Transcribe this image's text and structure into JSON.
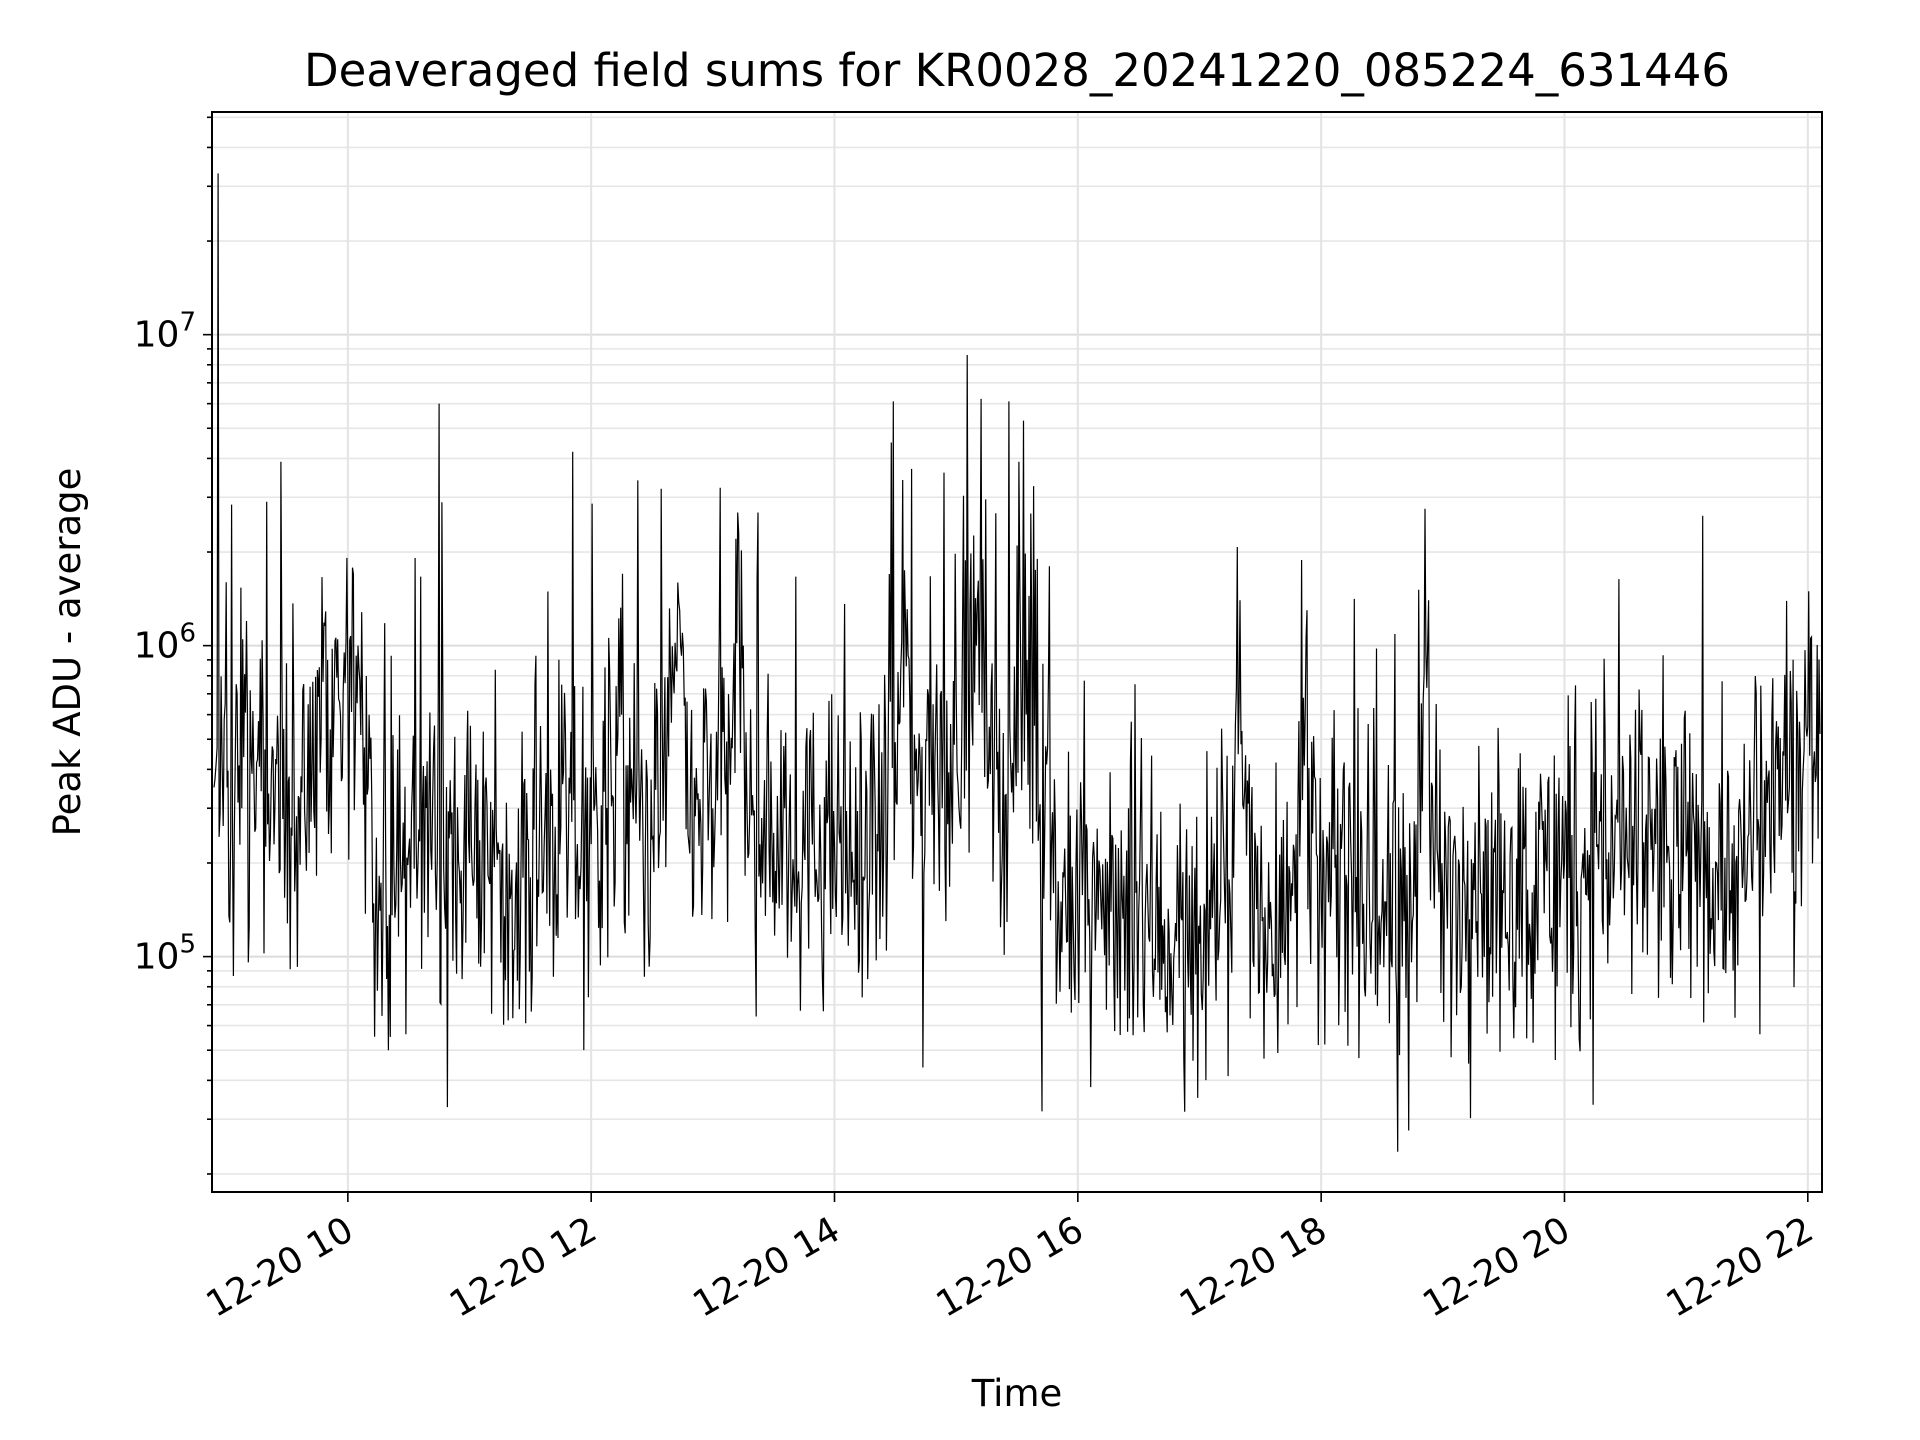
{
  "chart_data": {
    "type": "line",
    "title": "Deaveraged field sums for KR0028_20241220_085224_631446",
    "xlabel": "Time",
    "ylabel": "Peak ADU - average",
    "yscale": "log",
    "ylim": [
      17500,
      52000000
    ],
    "xlim": [
      "12-20 08:53",
      "12-20 22:07"
    ],
    "grid": true,
    "x_ticks": [
      "12-20 10",
      "12-20 12",
      "12-20 14",
      "12-20 16",
      "12-20 18",
      "12-20 20",
      "12-20 22"
    ],
    "y_ticks": [
      {
        "base": "10",
        "exp": "5",
        "value": 100000
      },
      {
        "base": "10",
        "exp": "6",
        "value": 1000000
      },
      {
        "base": "10",
        "exp": "7",
        "value": 10000000
      }
    ],
    "series": [
      {
        "color": "#000000",
        "points": [
          [
            "12-20 08:54",
            350000
          ],
          [
            "12-20 08:56",
            33000000
          ],
          [
            "12-20 08:58",
            420000
          ],
          [
            "12-20 09:00",
            1600000
          ],
          [
            "12-20 09:04",
            250000
          ],
          [
            "12-20 09:10",
            1200000
          ],
          [
            "12-20 09:15",
            420000
          ],
          [
            "12-20 09:20",
            2900000
          ],
          [
            "12-20 09:24",
            300000
          ],
          [
            "12-20 09:27",
            3900000
          ],
          [
            "12-20 09:32",
            260000
          ],
          [
            "12-20 09:40",
            330000
          ],
          [
            "12-20 09:50",
            900000
          ],
          [
            "12-20 10:00",
            750000
          ],
          [
            "12-20 10:05",
            1000000
          ],
          [
            "12-20 10:10",
            350000
          ],
          [
            "12-20 10:15",
            130000
          ],
          [
            "12-20 10:30",
            220000
          ],
          [
            "12-20 10:45",
            6000000
          ],
          [
            "12-20 10:50",
            240000
          ],
          [
            "12-20 11:00",
            200000
          ],
          [
            "12-20 11:15",
            220000
          ],
          [
            "12-20 11:30",
            180000
          ],
          [
            "12-20 11:45",
            260000
          ],
          [
            "12-20 12:00",
            230000
          ],
          [
            "12-20 12:15",
            600000
          ],
          [
            "12-20 12:23",
            3400000
          ],
          [
            "12-20 12:30",
            240000
          ],
          [
            "12-20 12:45",
            1100000
          ],
          [
            "12-20 13:00",
            300000
          ],
          [
            "12-20 13:15",
            1000000
          ],
          [
            "12-20 13:30",
            250000
          ],
          [
            "12-20 13:45",
            220000
          ],
          [
            "12-20 14:00",
            230000
          ],
          [
            "12-20 14:15",
            180000
          ],
          [
            "12-20 14:27",
            1700000
          ],
          [
            "12-20 14:28",
            4500000
          ],
          [
            "12-20 14:29",
            6100000
          ],
          [
            "12-20 14:35",
            1200000
          ],
          [
            "12-20 14:38",
            3700000
          ],
          [
            "12-20 14:45",
            500000
          ],
          [
            "12-20 14:54",
            3600000
          ],
          [
            "12-20 15:00",
            700000
          ],
          [
            "12-20 15:10",
            1000000
          ],
          [
            "12-20 15:20",
            400000
          ],
          [
            "12-20 15:26",
            6100000
          ],
          [
            "12-20 15:35",
            900000
          ],
          [
            "12-20 15:40",
            1900000
          ],
          [
            "12-20 15:46",
            1800000
          ],
          [
            "12-20 15:48",
            160000
          ],
          [
            "12-20 16:00",
            130000
          ],
          [
            "12-20 16:15",
            160000
          ],
          [
            "12-20 16:30",
            140000
          ],
          [
            "12-20 16:45",
            120000
          ],
          [
            "12-20 17:00",
            110000
          ],
          [
            "12-20 17:15",
            160000
          ],
          [
            "12-20 17:20",
            1400000
          ],
          [
            "12-20 17:30",
            150000
          ],
          [
            "12-20 17:45",
            130000
          ],
          [
            "12-20 17:53",
            1300000
          ],
          [
            "12-20 18:00",
            150000
          ],
          [
            "12-20 18:15",
            180000
          ],
          [
            "12-20 18:30",
            140000
          ],
          [
            "12-20 18:45",
            130000
          ],
          [
            "12-20 18:53",
            1400000
          ],
          [
            "12-20 19:00",
            150000
          ],
          [
            "12-20 19:15",
            200000
          ],
          [
            "12-20 19:30",
            160000
          ],
          [
            "12-20 19:45",
            170000
          ],
          [
            "12-20 20:00",
            200000
          ],
          [
            "12-20 20:15",
            250000
          ],
          [
            "12-20 20:30",
            220000
          ],
          [
            "12-20 20:45",
            230000
          ],
          [
            "12-20 21:00",
            210000
          ],
          [
            "12-20 21:15",
            200000
          ],
          [
            "12-20 21:30",
            180000
          ],
          [
            "12-20 21:45",
            400000
          ],
          [
            "12-20 22:00",
            550000
          ],
          [
            "12-20 22:06",
            520000
          ]
        ]
      }
    ]
  }
}
